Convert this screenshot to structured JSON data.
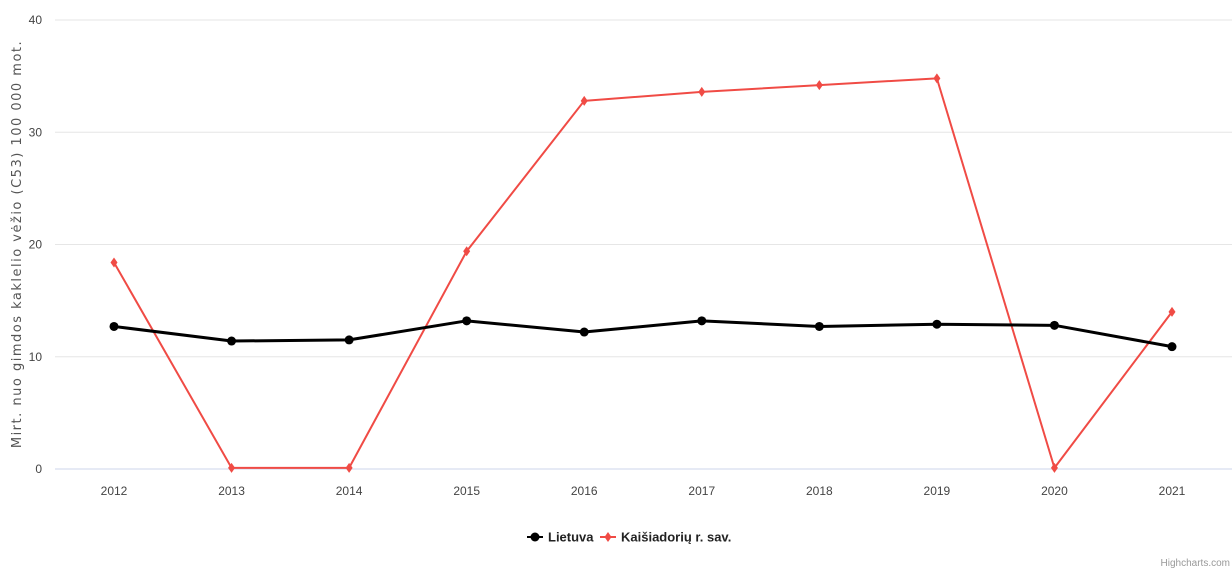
{
  "chart_data": {
    "type": "line",
    "title": "",
    "xlabel": "",
    "ylabel": "Mirt. nuo gimdos kaklelio vėžio (C53) 100 000 mot.",
    "categories": [
      "2012",
      "2013",
      "2014",
      "2015",
      "2016",
      "2017",
      "2018",
      "2019",
      "2020",
      "2021"
    ],
    "ylim": [
      0,
      40
    ],
    "yticks": [
      "0",
      "10",
      "20",
      "30",
      "40"
    ],
    "grid": true,
    "legend_position": "bottom-center",
    "series": [
      {
        "name": "Lietuva",
        "color": "#000000",
        "marker": "circle",
        "values": [
          12.7,
          11.4,
          11.5,
          13.2,
          12.2,
          13.2,
          12.7,
          12.9,
          12.8,
          10.9
        ]
      },
      {
        "name": "Kaišiadorių r. sav.",
        "color": "#f04b45",
        "marker": "diamond",
        "values": [
          18.4,
          0.1,
          0.1,
          19.4,
          32.8,
          33.6,
          34.2,
          34.8,
          0.1,
          14.0
        ]
      }
    ]
  },
  "credits": "Highcharts.com"
}
